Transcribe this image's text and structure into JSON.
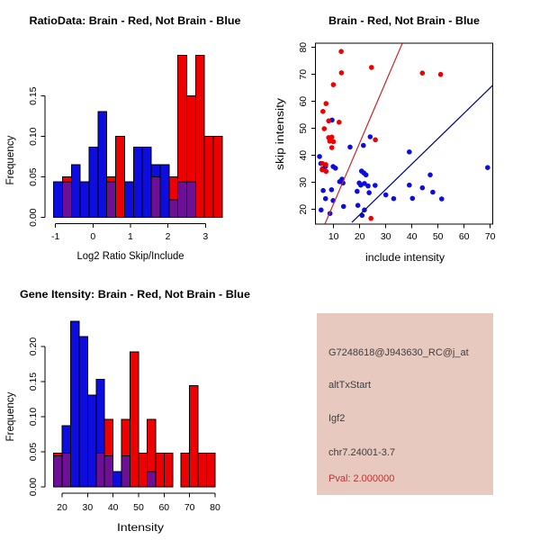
{
  "colors": {
    "red": "#EE0000",
    "blue": "#0D0DE0",
    "purple": "#6E1095",
    "red_line": "#CC2222",
    "blue_line": "#00008B",
    "axis": "#000000",
    "panel_bg": "#E8C9C0",
    "panel_text": "#3D3D3D",
    "pval_color": "#C03030"
  },
  "chart_data": [
    {
      "id": "ratio_hist",
      "type": "bar",
      "subtype": "overlaid-histogram",
      "title": "RatioData: Brain - Red, Not Brain - Blue",
      "xlabel": "Log2 Ratio Skip/Include",
      "ylabel": "Frequency",
      "xticks": [
        -1,
        0,
        1,
        2,
        3
      ],
      "ytick_vals": [
        0,
        0.05,
        0.1,
        0.15
      ],
      "ytick_labels": [
        "0.00",
        "0.05",
        "0.10",
        "0.15"
      ],
      "bin_start": -1.05,
      "bin_width": 0.2368,
      "series": [
        {
          "name": "Not Brain (blue)",
          "color_key": "blue",
          "values": [
            0.044,
            0.044,
            0.065,
            0.044,
            0.087,
            0.131,
            0.044,
            0,
            0.044,
            0.087,
            0.087,
            0.065,
            0.065,
            0.022,
            0.044,
            0.044,
            0,
            0,
            0
          ]
        },
        {
          "name": "Brain (red)",
          "color_key": "red",
          "values": [
            0,
            0.05,
            0,
            0,
            0,
            0,
            0.05,
            0.1,
            0,
            0,
            0,
            0.05,
            0,
            0.05,
            0.2,
            0.15,
            0.2,
            0.1,
            0.1
          ]
        }
      ]
    },
    {
      "id": "intensity_scatter",
      "type": "scatter",
      "title": "Brain - Red, Not Brain - Blue",
      "xlabel": "include intensity",
      "ylabel": "skip intensity",
      "xticks": [
        10,
        20,
        30,
        40,
        50,
        60,
        70
      ],
      "yticks": [
        20,
        30,
        40,
        50,
        60,
        70,
        80
      ],
      "xlim": [
        3,
        71
      ],
      "ylim": [
        14.5,
        81.5
      ],
      "red_points": [
        [
          12.9,
          78.5
        ],
        [
          24.5,
          72.6
        ],
        [
          44,
          70.5
        ],
        [
          51,
          70
        ],
        [
          13,
          70.6
        ],
        [
          9.9,
          66.2
        ],
        [
          7.1,
          59.2
        ],
        [
          5.9,
          56.3
        ],
        [
          8.1,
          52.8
        ],
        [
          12.1,
          52.3
        ],
        [
          6.4,
          49.9
        ],
        [
          9.3,
          46.8
        ],
        [
          8.1,
          46.6
        ],
        [
          8.5,
          45.3
        ],
        [
          9.9,
          45.1
        ],
        [
          26,
          45.8
        ],
        [
          9.3,
          42.9
        ],
        [
          5.7,
          37
        ],
        [
          7,
          36.6
        ],
        [
          5.6,
          34.7
        ],
        [
          7.1,
          34.1
        ],
        [
          24.3,
          16.7
        ]
      ],
      "blue_points": [
        [
          9.4,
          53.1
        ],
        [
          16.3,
          43.1
        ],
        [
          21.4,
          43.7
        ],
        [
          24,
          46.9
        ],
        [
          39,
          41.3
        ],
        [
          4.6,
          39.6
        ],
        [
          5.1,
          37
        ],
        [
          6.9,
          35.9
        ],
        [
          5.7,
          35
        ],
        [
          9.8,
          35.9
        ],
        [
          10.7,
          35.3
        ],
        [
          20.7,
          34.2
        ],
        [
          21.6,
          33.5
        ],
        [
          22.4,
          32.8
        ],
        [
          13.2,
          31.2
        ],
        [
          12.3,
          30.3
        ],
        [
          13.6,
          29.8
        ],
        [
          19.8,
          29.8
        ],
        [
          20.4,
          29
        ],
        [
          21.8,
          29.6
        ],
        [
          23.2,
          28.7
        ],
        [
          25.9,
          28.9
        ],
        [
          30,
          25.4
        ],
        [
          33,
          24
        ],
        [
          39,
          29
        ],
        [
          44,
          28
        ],
        [
          40.2,
          24.1
        ],
        [
          48,
          26.4
        ],
        [
          51.4,
          23.9
        ],
        [
          47,
          32.8
        ],
        [
          69,
          35.5
        ],
        [
          6,
          27
        ],
        [
          9.2,
          27.3
        ],
        [
          19,
          26.7
        ],
        [
          23.6,
          26.2
        ],
        [
          6.9,
          24
        ],
        [
          9.8,
          23.3
        ],
        [
          13.8,
          21.1
        ],
        [
          19.3,
          21.5
        ],
        [
          21.8,
          19.8
        ],
        [
          5.2,
          19.8
        ],
        [
          8.6,
          18.5
        ],
        [
          20.9,
          17.8
        ]
      ],
      "red_line": [
        [
          6.7,
          14.7
        ],
        [
          36.3,
          81.5
        ]
      ],
      "blue_line": [
        [
          17,
          15.2
        ],
        [
          71,
          66
        ]
      ]
    },
    {
      "id": "gene_hist",
      "type": "bar",
      "subtype": "overlaid-histogram",
      "title": "Gene Itensity: Brain - Red, Not Brain - Blue",
      "xlabel": "Intensity",
      "ylabel": "Frequency",
      "xticks": [
        20,
        30,
        40,
        50,
        60,
        70,
        80
      ],
      "ytick_vals": [
        0,
        0.05,
        0.1,
        0.15,
        0.2
      ],
      "ytick_labels": [
        "0.00",
        "0.05",
        "0.10",
        "0.15",
        "0.20"
      ],
      "bin_start": 16.667,
      "bin_width": 3.333,
      "series": [
        {
          "name": "Not Brain (blue)",
          "color_key": "blue",
          "values": [
            0.044,
            0.087,
            0.236,
            0.214,
            0.131,
            0.153,
            0.044,
            0.022,
            0.044,
            0,
            0,
            0.022,
            0,
            0,
            0,
            0,
            0,
            0,
            0
          ]
        },
        {
          "name": "Brain (red)",
          "color_key": "red",
          "values": [
            0.048,
            0.048,
            0,
            0,
            0,
            0.048,
            0.096,
            0,
            0.096,
            0.192,
            0.048,
            0.096,
            0.048,
            0.048,
            0,
            0.048,
            0.144,
            0.048,
            0.048
          ]
        }
      ]
    }
  ],
  "info_panel": {
    "probe_id": "G7248618@J943630_RC@j_at",
    "event_type": "altTxStart",
    "gene": "Igf2",
    "locus": "chr7.24001-3.7",
    "pval_label": "Pval: 2.000000"
  }
}
